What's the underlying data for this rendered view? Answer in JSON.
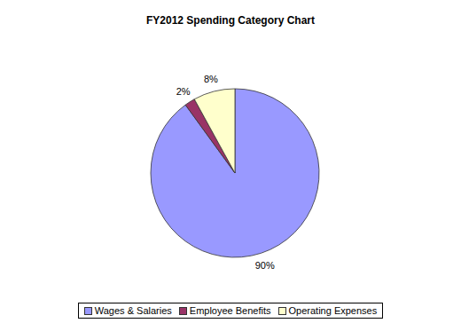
{
  "chart_data": {
    "type": "pie",
    "title": "FY2012 Spending Category Chart",
    "categories": [
      "Wages & Salaries",
      "Employee Benefits",
      "Operating Expenses"
    ],
    "values": [
      90,
      2,
      8
    ],
    "value_labels": [
      "90%",
      "2%",
      "8%"
    ],
    "colors": [
      "#9999ff",
      "#993366",
      "#ffffcc"
    ],
    "data_labels": true,
    "legend": "bottom"
  }
}
